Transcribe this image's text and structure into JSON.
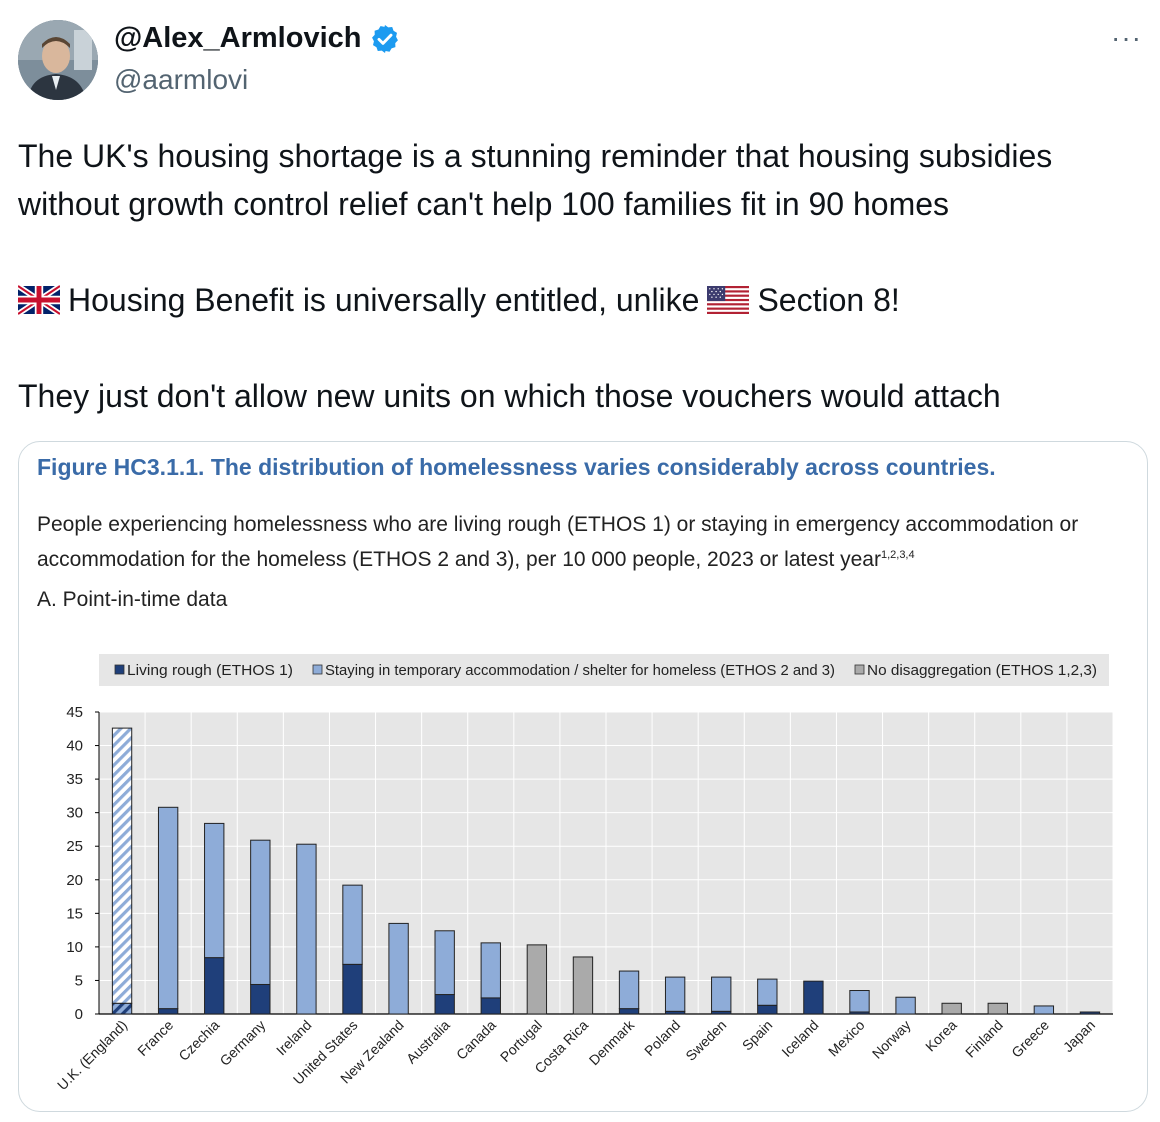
{
  "author": {
    "display_name": "@Alex_Armlovich",
    "handle": "@aarmlovi",
    "verified_icon": "verified-badge-icon",
    "avatar_icon": "avatar-photo"
  },
  "more_label": "···",
  "tweet": {
    "line1": "The UK's housing shortage is a stunning reminder that housing subsidies",
    "line2": "without growth control relief can't help 100 families fit in 90 homes",
    "line3a": "Housing Benefit is universally entitled, unlike",
    "line3b": "Section 8!",
    "line4": "They just don't allow new units on which those vouchers would attach",
    "flag1_icon": "uk-flag-icon",
    "flag2_icon": "us-flag-icon"
  },
  "figure": {
    "title": "Figure HC3.1.1. The distribution of homelessness varies considerably across countries.",
    "subtitle_line1": "People experiencing homelessness who are living rough (ETHOS 1) or staying in emergency accommodation or",
    "subtitle_line2": "accommodation for the homeless (ETHOS 2 and 3), per 10 000 people, 2023 or latest year",
    "subtitle_sup": "1,2,3,4",
    "panel_label": "A. Point-in-time data"
  },
  "chart_data": {
    "type": "bar",
    "stacked": true,
    "categories": [
      "U.K. (England)",
      "France",
      "Czechia",
      "Germany",
      "Ireland",
      "United States",
      "New Zealand",
      "Australia",
      "Canada",
      "Portugal",
      "Costa Rica",
      "Denmark",
      "Poland",
      "Sweden",
      "Spain",
      "Iceland",
      "Mexico",
      "Norway",
      "Korea",
      "Finland",
      "Greece",
      "Japan"
    ],
    "series": [
      {
        "name": "Living rough (ETHOS 1)",
        "color": "#1f3f7a",
        "values": [
          1.6,
          0.8,
          8.4,
          4.4,
          0,
          7.4,
          0,
          2.9,
          2.4,
          0,
          0,
          0.8,
          0.4,
          0.4,
          1.3,
          4.9,
          0.3,
          0,
          0,
          0,
          0,
          0.3
        ]
      },
      {
        "name": "Staying in temporary accommodation / shelter for homeless (ETHOS 2 and 3)",
        "color": "#8eacd8",
        "values": [
          41,
          30,
          20,
          21.5,
          25.3,
          11.8,
          13.5,
          9.5,
          8.2,
          0,
          0,
          5.6,
          5.1,
          5.1,
          3.9,
          0,
          3.2,
          2.5,
          0,
          0,
          1.2,
          0
        ]
      },
      {
        "name": "No disaggregation (ETHOS 1,2,3)",
        "color": "#aaaaaa",
        "values": [
          0,
          0,
          0,
          0,
          0,
          0,
          0,
          0,
          0,
          10.3,
          8.5,
          0,
          0,
          0,
          0,
          0,
          0,
          0,
          1.6,
          1.6,
          0,
          0
        ]
      }
    ],
    "hatched_categories": [
      "U.K. (England)"
    ],
    "ylim": [
      0,
      45
    ],
    "yticks": [
      0,
      5,
      10,
      15,
      20,
      25,
      30,
      35,
      40,
      45
    ],
    "grid": true,
    "legend_position": "top"
  }
}
